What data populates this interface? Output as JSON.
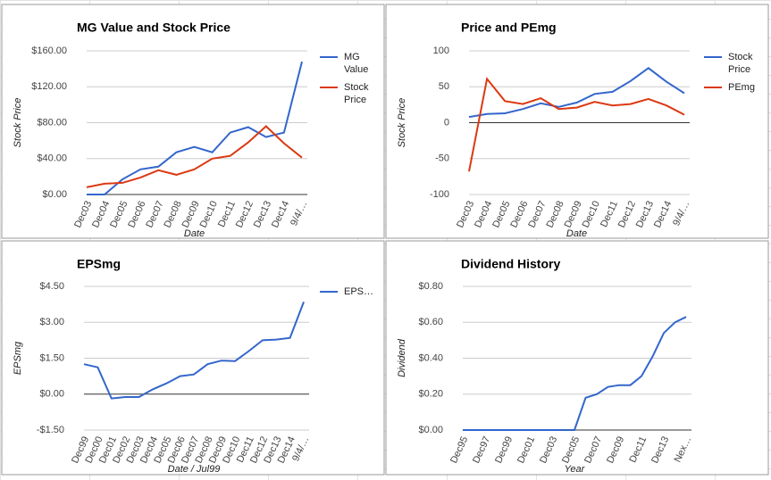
{
  "chart_data": [
    {
      "type": "line",
      "title": "MG Value and Stock Price",
      "x_label": "Date",
      "y_label": "Stock Price",
      "categories": [
        "Dec03",
        "Dec04",
        "Dec05",
        "Dec06",
        "Dec07",
        "Dec08",
        "Dec09",
        "Dec10",
        "Dec11",
        "Dec12",
        "Dec13",
        "Dec14",
        "9/4/…"
      ],
      "series": [
        {
          "name": "MG Value",
          "color": "#3366cc",
          "values": [
            0,
            0,
            17,
            28,
            31,
            47,
            53,
            47,
            69,
            75,
            64,
            69,
            148
          ]
        },
        {
          "name": "Stock Price",
          "color": "#dc3912",
          "values": [
            8,
            12,
            13,
            19,
            27,
            22,
            28,
            40,
            43,
            58,
            76,
            57,
            41
          ]
        }
      ],
      "ylim": [
        0,
        160
      ],
      "yticks": [
        {
          "value": 0,
          "label": "$0.00"
        },
        {
          "value": 40,
          "label": "$40.00"
        },
        {
          "value": 80,
          "label": "$80.00"
        },
        {
          "value": 120,
          "label": "$120.00"
        },
        {
          "value": 160,
          "label": "$160.00"
        }
      ],
      "grid": true,
      "legend": "right"
    },
    {
      "type": "line",
      "title": "Price and PEmg",
      "x_label": "Date",
      "y_label": "Stock Price",
      "categories": [
        "Dec03",
        "Dec04",
        "Dec05",
        "Dec06",
        "Dec07",
        "Dec08",
        "Dec09",
        "Dec10",
        "Dec11",
        "Dec12",
        "Dec13",
        "Dec14",
        "9/4/…"
      ],
      "series": [
        {
          "name": "Stock Price",
          "color": "#3366cc",
          "values": [
            8,
            12,
            13,
            19,
            27,
            22,
            28,
            40,
            43,
            58,
            76,
            57,
            41
          ]
        },
        {
          "name": "PEmg",
          "color": "#dc3912",
          "values": [
            -68,
            61,
            30,
            26,
            34,
            19,
            21,
            29,
            24,
            26,
            33,
            24,
            11
          ]
        }
      ],
      "ylim": [
        -100,
        100
      ],
      "yticks": [
        -100,
        -50,
        0,
        50,
        100
      ],
      "grid": true,
      "legend": "right"
    },
    {
      "type": "line",
      "title": "EPSmg",
      "x_label": "Date / Jul99",
      "y_label": "EPSmg",
      "categories": [
        "Dec99",
        "Dec00",
        "Dec01",
        "Dec02",
        "Dec03",
        "Dec04",
        "Dec05",
        "Dec06",
        "Dec07",
        "Dec08",
        "Dec09",
        "Dec10",
        "Dec11",
        "Dec12",
        "Dec13",
        "Dec14",
        "9/4/…"
      ],
      "series": [
        {
          "name": "EPS…",
          "color": "#3366cc",
          "values": [
            1.25,
            1.12,
            -0.18,
            -0.12,
            -0.12,
            0.2,
            0.45,
            0.75,
            0.82,
            1.25,
            1.4,
            1.38,
            1.8,
            2.25,
            2.28,
            2.35,
            3.85
          ]
        }
      ],
      "ylim": [
        -1.5,
        4.5
      ],
      "yticks": [
        {
          "value": -1.5,
          "label": "-$1.50"
        },
        {
          "value": 0,
          "label": "$0.00"
        },
        {
          "value": 1.5,
          "label": "$1.50"
        },
        {
          "value": 3,
          "label": "$3.00"
        },
        {
          "value": 4.5,
          "label": "$4.50"
        }
      ],
      "grid": true,
      "legend": "right"
    },
    {
      "type": "line",
      "title": "Dividend History",
      "x_label": "Year",
      "y_label": "Dividend",
      "categories": [
        "Dec95",
        null,
        "Dec97",
        null,
        "Dec99",
        null,
        "Dec01",
        null,
        "Dec03",
        null,
        "Dec05",
        null,
        "Dec07",
        null,
        "Dec09",
        null,
        "Dec11",
        null,
        "Dec13",
        null,
        "Nex…"
      ],
      "series": [
        {
          "color": "#3366cc",
          "values": [
            0,
            0,
            0,
            0,
            0,
            0,
            0,
            0,
            0,
            0,
            0,
            0.18,
            0.2,
            0.24,
            0.25,
            0.25,
            0.3,
            0.41,
            0.54,
            0.6,
            0.63
          ]
        }
      ],
      "ylim": [
        0,
        0.8
      ],
      "yticks": [
        {
          "value": 0,
          "label": "$0.00"
        },
        {
          "value": 0.2,
          "label": "$0.20"
        },
        {
          "value": 0.4,
          "label": "$0.40"
        },
        {
          "value": 0.6,
          "label": "$0.60"
        },
        {
          "value": 0.8,
          "label": "$0.80"
        }
      ],
      "grid": true
    }
  ]
}
